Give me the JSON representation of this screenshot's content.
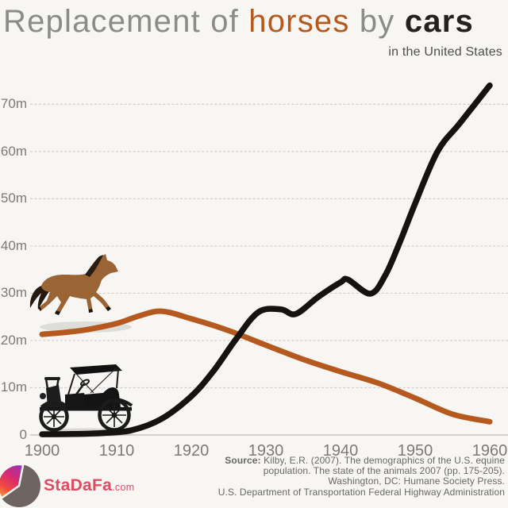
{
  "header": {
    "title_parts": [
      {
        "text": "Replacement of ",
        "color": "#8b8b8b"
      },
      {
        "text": "horses",
        "color": "#b5591e"
      },
      {
        "text": " by ",
        "color": "#8b8b8b"
      },
      {
        "text": "cars",
        "color": "#24211e"
      }
    ],
    "subtitle": "in the United States"
  },
  "chart_data": {
    "type": "line",
    "title": "Replacement of horses by cars in the United States",
    "xlabel": "",
    "ylabel": "",
    "unit": "millions",
    "xlim": [
      1900,
      1960
    ],
    "ylim": [
      0,
      75
    ],
    "grid": "horizontal-dashed",
    "legend": "none (series indicated by title colors and illustrations)",
    "x_ticks": [
      {
        "value": 1900,
        "label": "1900"
      },
      {
        "value": 1910,
        "label": "1910"
      },
      {
        "value": 1920,
        "label": "1920"
      },
      {
        "value": 1930,
        "label": "1930"
      },
      {
        "value": 1940,
        "label": "1940"
      },
      {
        "value": 1950,
        "label": "1950"
      },
      {
        "value": 1960,
        "label": "1960"
      }
    ],
    "y_ticks": [
      {
        "value": 0,
        "label": "0"
      },
      {
        "value": 10,
        "label": "10m"
      },
      {
        "value": 20,
        "label": "20m"
      },
      {
        "value": 30,
        "label": "30m"
      },
      {
        "value": 40,
        "label": "40m"
      },
      {
        "value": 50,
        "label": "50m"
      },
      {
        "value": 60,
        "label": "60m"
      },
      {
        "value": 70,
        "label": "70m"
      }
    ],
    "series": [
      {
        "name": "horses",
        "color": "#b5591e",
        "stroke_width": 7,
        "points": [
          [
            1900,
            21.3
          ],
          [
            1903,
            21.7
          ],
          [
            1906,
            22.3
          ],
          [
            1910,
            23.6
          ],
          [
            1913,
            25.2
          ],
          [
            1916,
            26.2
          ],
          [
            1920,
            24.6
          ],
          [
            1925,
            22.1
          ],
          [
            1930,
            19.0
          ],
          [
            1935,
            16.0
          ],
          [
            1940,
            13.4
          ],
          [
            1945,
            11.0
          ],
          [
            1950,
            7.8
          ],
          [
            1955,
            4.4
          ],
          [
            1960,
            2.8
          ]
        ]
      },
      {
        "name": "cars",
        "color": "#15130f",
        "stroke_width": 7.5,
        "points": [
          [
            1900,
            0.15
          ],
          [
            1904,
            0.2
          ],
          [
            1908,
            0.4
          ],
          [
            1912,
            1.0
          ],
          [
            1916,
            3.4
          ],
          [
            1920,
            8.2
          ],
          [
            1923,
            13.6
          ],
          [
            1926,
            20.3
          ],
          [
            1929,
            26.0
          ],
          [
            1932,
            26.6
          ],
          [
            1934,
            25.6
          ],
          [
            1937,
            29.2
          ],
          [
            1940,
            32.3
          ],
          [
            1941,
            32.9
          ],
          [
            1944,
            29.9
          ],
          [
            1946,
            33.8
          ],
          [
            1948,
            41.0
          ],
          [
            1950,
            49.0
          ],
          [
            1953,
            60.0
          ],
          [
            1956,
            66.0
          ],
          [
            1960,
            74.0
          ]
        ]
      }
    ],
    "colors": {
      "background": "#f7f6f3",
      "gridline": "#d2cfcb",
      "baseline": "#c9c6c2",
      "axis_text": "#7c7a77"
    }
  },
  "illustrations": [
    {
      "name": "horse",
      "description": "running bay horse above the horses line"
    },
    {
      "name": "vintage-car",
      "description": "Ford Model T style car above the cars line"
    }
  ],
  "footer": {
    "source_label": "Source:",
    "source_lines": [
      "Kilby, E.R. (2007). The demographics of the U.S. equine",
      "population. The state of the animals 2007 (pp. 175-205).",
      "Washington, DC: Humane Society Press.",
      "U.S. Department of Transportation Federal Highway Administration"
    ],
    "logo": {
      "brand": "StaDaFa",
      "tld": ".com",
      "text_color": "#e14b62",
      "pie_gray": "#6e6562",
      "pie_gradient": [
        "#8a3ab9",
        "#d62976",
        "#f04a3e",
        "#fcb045"
      ]
    }
  }
}
